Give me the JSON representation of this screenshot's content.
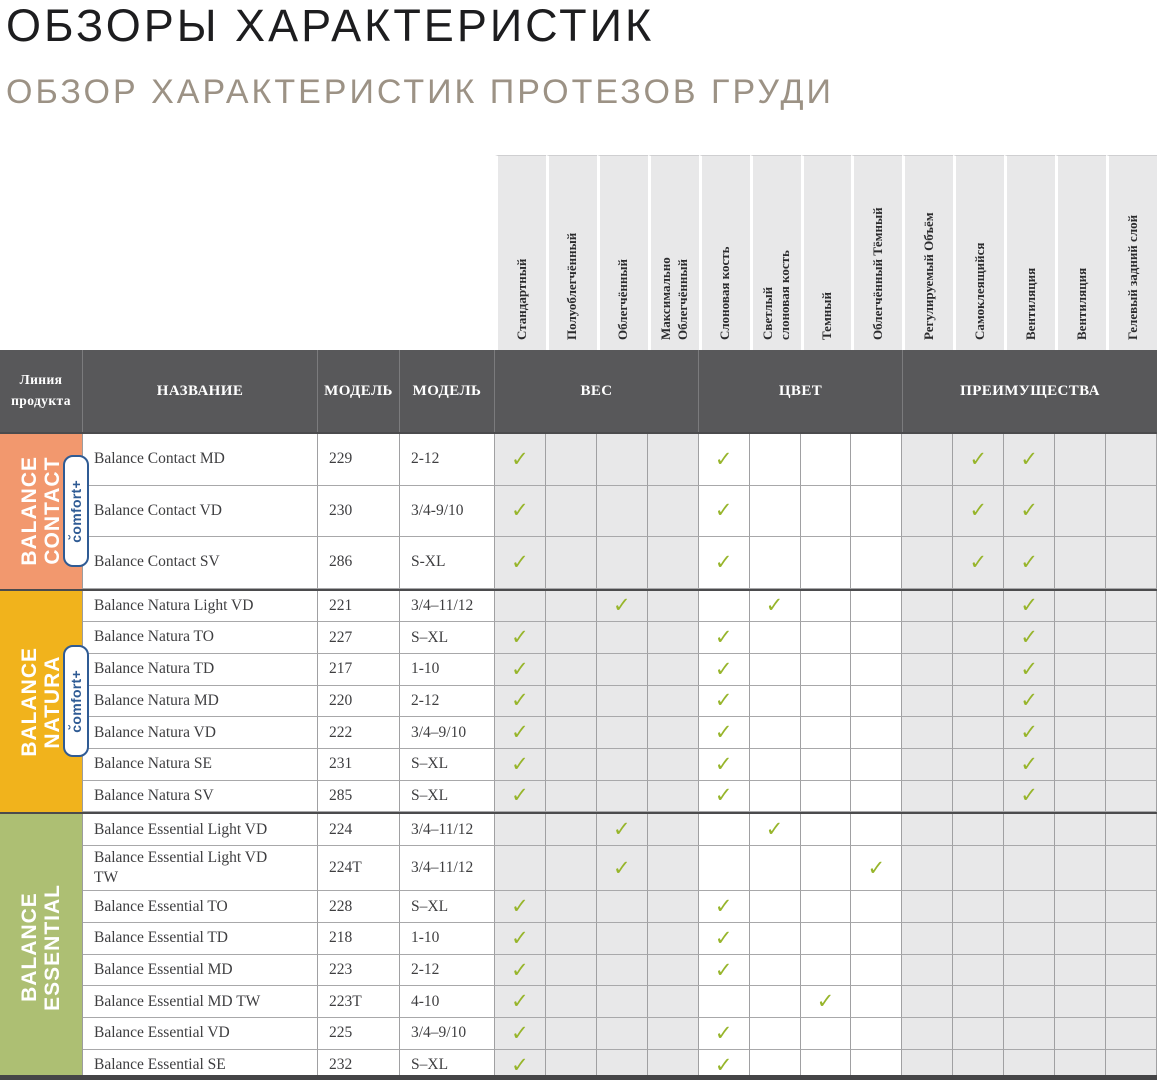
{
  "page": {
    "title": "ОБЗОРЫ ХАРАКТЕРИСТИК",
    "subtitle": "ОБЗОР ХАРАКТЕРИСТИК ПРОТЕЗОВ ГРУДИ"
  },
  "table": {
    "corner_header": "Линия\nпродукта",
    "name_header": "НАЗВАНИЕ",
    "model_header": "МОДЕЛЬ",
    "size_header": "МОДЕЛЬ",
    "group_headers": {
      "weight": "ВЕС",
      "color": "ЦВЕТ",
      "benefits": "ПРЕИМУЩЕСТВА"
    },
    "feature_columns": [
      "Стандартный",
      "Полуоблегчённый",
      "Облегчённый",
      "Максимально\nОблегчённый",
      "Слоновая кость",
      "Светлый\nслоновая кость",
      "Темный",
      "Облегчённый Тёмный",
      "Регулируемый Объём",
      "Самоклеящийся",
      "Вентиляция",
      "Вентиляция",
      "Гелевый задний слой"
    ]
  },
  "product_lines": [
    {
      "id": "balance-contact",
      "label": "BALANCE\nCONTACT",
      "badge": "c̆omfort+",
      "color": "#F2986E",
      "rows": [
        {
          "name": "Balance Contact MD",
          "model": "229",
          "size": "2-12",
          "checks": [
            1,
            5,
            10,
            11
          ]
        },
        {
          "name": "Balance Contact VD",
          "model": "230",
          "size": "3/4-9/10",
          "checks": [
            1,
            5,
            10,
            11
          ]
        },
        {
          "name": "Balance Contact SV",
          "model": "286",
          "size": "S-XL",
          "checks": [
            1,
            5,
            10,
            11
          ]
        }
      ]
    },
    {
      "id": "balance-natura",
      "label": "BALANCE\nNATURA",
      "badge": "c̆omfort+",
      "color": "#F1B31C",
      "rows": [
        {
          "name": "Balance Natura Light VD",
          "model": "221",
          "size": "3/4–11/12",
          "checks": [
            3,
            6,
            11
          ]
        },
        {
          "name": "Balance Natura TO",
          "model": "227",
          "size": "S–XL",
          "checks": [
            1,
            5,
            11
          ]
        },
        {
          "name": "Balance Natura TD",
          "model": "217",
          "size": "1-10",
          "checks": [
            1,
            5,
            11
          ]
        },
        {
          "name": "Balance Natura MD",
          "model": "220",
          "size": "2-12",
          "checks": [
            1,
            5,
            11
          ]
        },
        {
          "name": "Balance Natura VD",
          "model": "222",
          "size": "3/4–9/10",
          "checks": [
            1,
            5,
            11
          ]
        },
        {
          "name": "Balance Natura SE",
          "model": "231",
          "size": "S–XL",
          "checks": [
            1,
            5,
            11
          ]
        },
        {
          "name": "Balance Natura SV",
          "model": "285",
          "size": "S–XL",
          "checks": [
            1,
            5,
            11
          ]
        }
      ]
    },
    {
      "id": "balance-essential",
      "label": "BALANCE\nESSENTIAL",
      "badge": null,
      "color": "#ADBF73",
      "rows": [
        {
          "name": "Balance Essential Light VD",
          "model": "224",
          "size": "3/4–11/12",
          "checks": [
            3,
            6
          ]
        },
        {
          "name": "Balance Essential Light VD TW",
          "model": "224T",
          "size": "3/4–11/12",
          "checks": [
            3,
            8
          ]
        },
        {
          "name": "Balance Essential TO",
          "model": "228",
          "size": "S–XL",
          "checks": [
            1,
            5
          ]
        },
        {
          "name": "Balance Essential TD",
          "model": "218",
          "size": "1-10",
          "checks": [
            1,
            5
          ]
        },
        {
          "name": "Balance Essential MD",
          "model": "223",
          "size": "2-12",
          "checks": [
            1,
            5
          ]
        },
        {
          "name": "Balance Essential MD TW",
          "model": "223T",
          "size": "4-10",
          "checks": [
            1,
            7
          ]
        },
        {
          "name": "Balance Essential VD",
          "model": "225",
          "size": "3/4–9/10",
          "checks": [
            1,
            5
          ]
        },
        {
          "name": "Balance Essential SE",
          "model": "232",
          "size": "S–XL",
          "checks": [
            1,
            5
          ]
        }
      ]
    }
  ],
  "icons": {
    "check": "✓"
  },
  "colors": {
    "contact_orange": "#F2986E",
    "natura_yellow": "#F1B31C",
    "essential_olive": "#ADBF73",
    "check_green": "#97B52B",
    "header_dark": "#58585A",
    "cell_gray": "#E8E8E9",
    "badge_blue": "#2F5B94",
    "title_black": "#1D1D1F",
    "subtitle_taupe": "#9C9285",
    "bottom_strip": "#454547"
  }
}
